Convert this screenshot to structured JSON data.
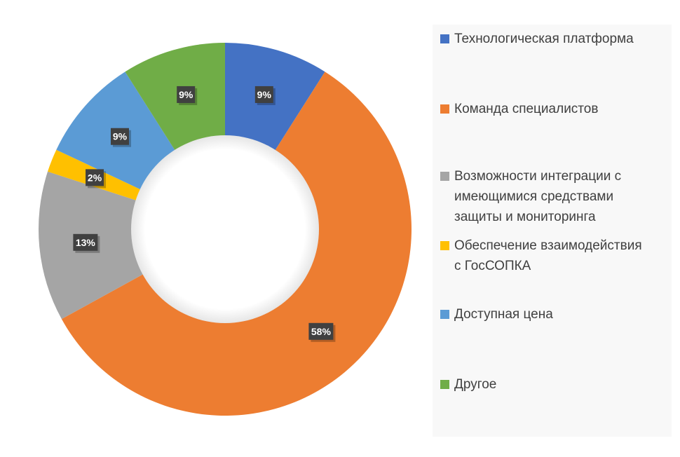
{
  "chart_data": {
    "type": "pie",
    "variant": "donut",
    "categories": [
      "Технологическая платформа",
      "Команда специалистов",
      "Возможности интеграции с имеющимися средствами защиты и мониторинга",
      "Обеспечение взаимодействия с ГосСОПКА",
      "Доступная цена",
      "Другое"
    ],
    "values": [
      9,
      58,
      13,
      2,
      9,
      9
    ],
    "labels": [
      "9%",
      "58%",
      "13%",
      "2%",
      "9%",
      "9%"
    ],
    "colors": [
      "#4472C4",
      "#ED7D31",
      "#A5A5A5",
      "#FFC000",
      "#5B9BD5",
      "#70AD47"
    ],
    "legend_position": "right",
    "title": ""
  },
  "legend": [
    {
      "lines": [
        "Технологическая платформа"
      ]
    },
    {
      "lines": [
        "Команда специалистов"
      ]
    },
    {
      "lines": [
        "Возможности интеграции с",
        "имеющимися средствами",
        "защиты и мониторинга"
      ]
    },
    {
      "lines": [
        "Обеспечение взаимодействия",
        "с ГосСОПКА"
      ]
    },
    {
      "lines": [
        "Доступная цена"
      ]
    },
    {
      "lines": [
        "Другое"
      ]
    }
  ]
}
